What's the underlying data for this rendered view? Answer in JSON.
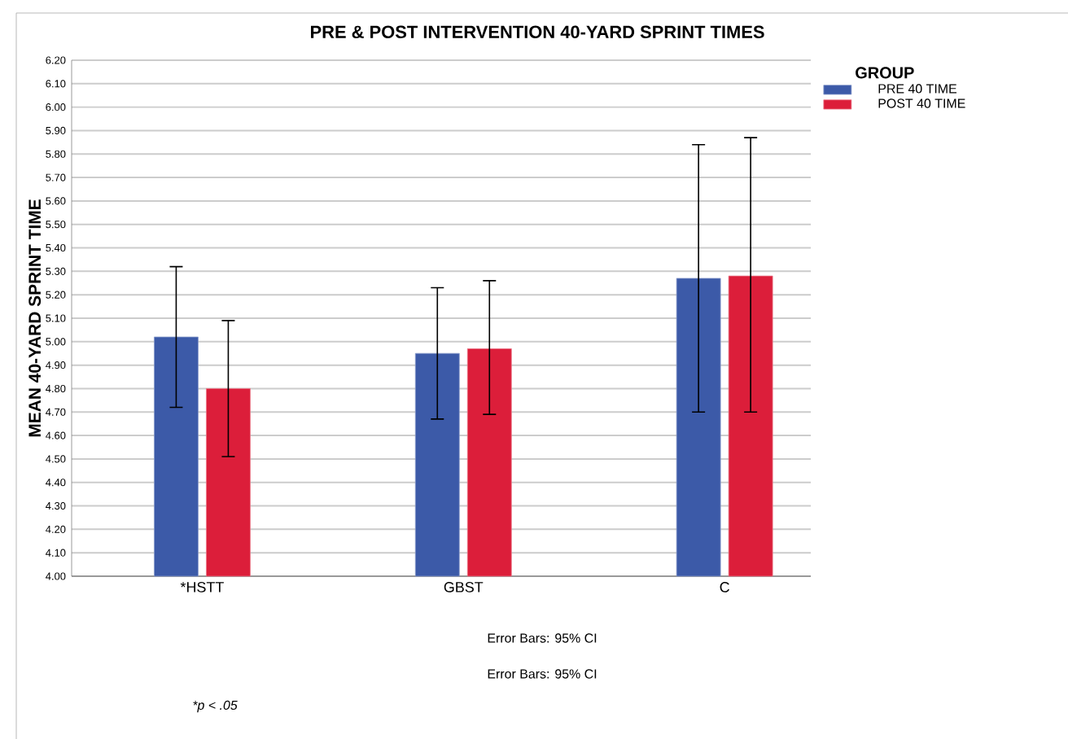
{
  "chart_data": {
    "type": "bar",
    "title": "PRE & POST INTERVENTION 40-YARD SPRINT TIMES",
    "ylabel": "MEAN 40-YARD SPRINT TIME",
    "legend_title": "GROUP",
    "categories": [
      "*HSTT",
      "GBST",
      "C"
    ],
    "series": [
      {
        "name": "PRE 40 TIME",
        "color": "#3c5aa8",
        "values": [
          5.02,
          4.95,
          5.27
        ],
        "errors": [
          [
            4.72,
            5.32
          ],
          [
            4.67,
            5.23
          ],
          [
            4.7,
            5.84
          ]
        ]
      },
      {
        "name": "POST 40 TIME",
        "color": "#dc1e3a",
        "values": [
          4.8,
          4.97,
          5.28
        ],
        "errors": [
          [
            4.51,
            5.09
          ],
          [
            4.69,
            5.26
          ],
          [
            4.7,
            5.87
          ]
        ]
      }
    ],
    "ylim": [
      4.0,
      6.2
    ],
    "yticks": [
      {
        "value": 4.0,
        "label": "4.00"
      },
      {
        "value": 4.1,
        "label": "4.10"
      },
      {
        "value": 4.2,
        "label": "4.20"
      },
      {
        "value": 4.3,
        "label": "4.30"
      },
      {
        "value": 4.4,
        "label": "4.40"
      },
      {
        "value": 4.5,
        "label": "4.50"
      },
      {
        "value": 4.6,
        "label": "4.60"
      },
      {
        "value": 4.7,
        "label": "4.70"
      },
      {
        "value": 4.8,
        "label": "4.80"
      },
      {
        "value": 4.9,
        "label": "4.90"
      },
      {
        "value": 5.0,
        "label": "5.00"
      },
      {
        "value": 5.1,
        "label": "5.10"
      },
      {
        "value": 5.2,
        "label": "5.20"
      },
      {
        "value": 5.3,
        "label": "5.30"
      },
      {
        "value": 5.4,
        "label": "5.40"
      },
      {
        "value": 5.5,
        "label": "5.50"
      },
      {
        "value": 5.6,
        "label": "5.60"
      },
      {
        "value": 5.7,
        "label": "5.70"
      },
      {
        "value": 5.8,
        "label": "5.80"
      },
      {
        "value": 5.9,
        "label": "5.90"
      },
      {
        "value": 6.0,
        "label": "6.00"
      },
      {
        "value": 6.1,
        "label": "6.10"
      },
      {
        "value": 6.2,
        "label": "6.20"
      }
    ],
    "grid": "y",
    "legend": "top right",
    "annotations": [
      "Error Bars: 95% CI",
      "Error Bars: 95% CI",
      "*p < .05"
    ]
  }
}
